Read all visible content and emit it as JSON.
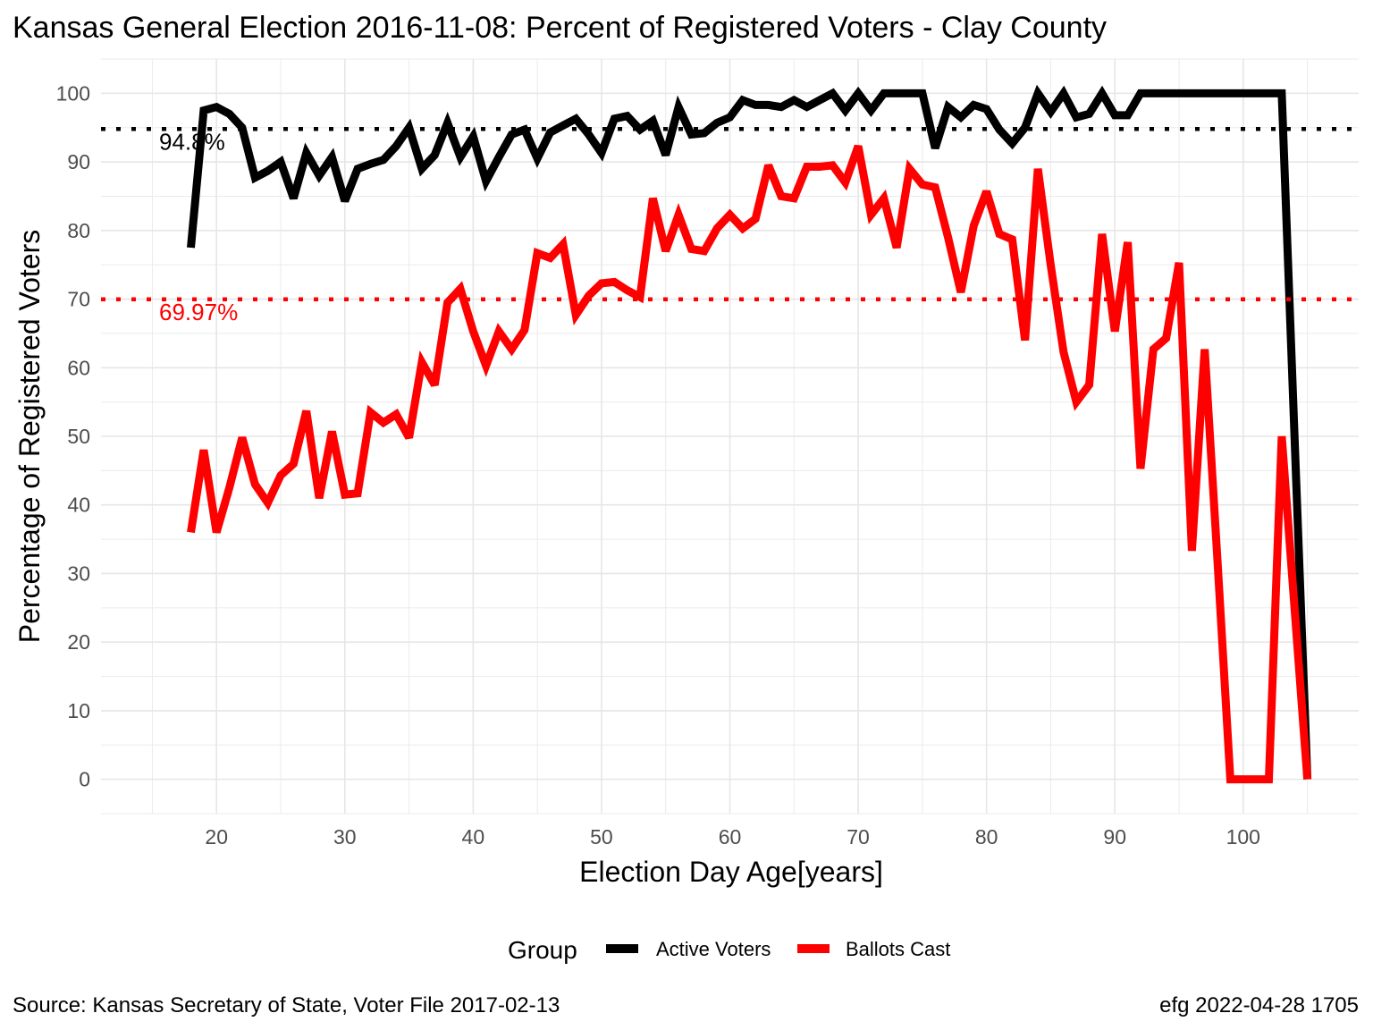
{
  "chart_data": {
    "type": "line",
    "title": "Kansas General Election 2016-11-08:  Percent of Registered Voters - Clay County",
    "xlabel": "Election Day Age[years]",
    "ylabel": "Percentage of Registered Voters",
    "xlim": [
      11,
      109
    ],
    "ylim": [
      -5,
      105
    ],
    "x_ticks": [
      20,
      30,
      40,
      50,
      60,
      70,
      80,
      90,
      100
    ],
    "y_ticks": [
      0,
      10,
      20,
      30,
      40,
      50,
      60,
      70,
      80,
      90,
      100
    ],
    "grid": true,
    "legend": {
      "title": "Group",
      "position": "bottom"
    },
    "reference_lines": [
      {
        "label": "94.8%",
        "value": 94.8,
        "color": "#000000"
      },
      {
        "label": "69.97%",
        "value": 69.97,
        "color": "#ff0000"
      }
    ],
    "series": [
      {
        "name": "Active Voters",
        "color": "#000000",
        "x": [
          18,
          19,
          20,
          21,
          22,
          23,
          24,
          25,
          26,
          27,
          28,
          29,
          30,
          31,
          32,
          33,
          34,
          35,
          36,
          37,
          38,
          39,
          40,
          41,
          42,
          43,
          44,
          45,
          46,
          47,
          48,
          49,
          50,
          51,
          52,
          53,
          54,
          55,
          56,
          57,
          58,
          59,
          60,
          61,
          62,
          63,
          64,
          65,
          66,
          67,
          68,
          69,
          70,
          71,
          72,
          73,
          74,
          75,
          76,
          77,
          78,
          79,
          80,
          81,
          82,
          83,
          84,
          85,
          86,
          87,
          88,
          89,
          90,
          91,
          92,
          93,
          94,
          95,
          96,
          97,
          98,
          99,
          100,
          101,
          102,
          103,
          104,
          105
        ],
        "values": [
          77.5,
          97.5,
          98,
          97,
          95,
          87.7,
          88.7,
          90,
          84.7,
          91.3,
          88,
          90.7,
          84.3,
          89,
          89.7,
          90.3,
          92.3,
          95,
          89,
          91,
          95.7,
          90.7,
          93.7,
          87.2,
          90.7,
          94,
          94.7,
          90.5,
          94.3,
          95.3,
          96.3,
          94,
          91.3,
          96.3,
          96.7,
          94.7,
          96,
          91,
          98,
          94,
          94.2,
          95.7,
          96.5,
          99,
          98.3,
          98.3,
          98,
          99,
          98,
          99,
          100,
          97.5,
          100,
          97.5,
          100,
          100,
          100,
          100,
          92,
          98,
          96.5,
          98.3,
          97.7,
          94.7,
          92.7,
          95,
          100,
          97.3,
          100,
          96.5,
          97,
          100,
          96.8,
          96.8,
          100,
          100,
          100,
          100,
          100,
          100,
          100,
          100,
          100,
          100,
          100,
          100,
          50,
          0
        ]
      },
      {
        "name": "Ballots Cast",
        "color": "#ff0000",
        "x": [
          18,
          19,
          20,
          21,
          22,
          23,
          24,
          25,
          26,
          27,
          28,
          29,
          30,
          31,
          32,
          33,
          34,
          35,
          36,
          37,
          38,
          39,
          40,
          41,
          42,
          43,
          44,
          45,
          46,
          47,
          48,
          49,
          50,
          51,
          52,
          53,
          54,
          55,
          56,
          57,
          58,
          59,
          60,
          61,
          62,
          63,
          64,
          65,
          66,
          67,
          68,
          69,
          70,
          71,
          72,
          73,
          74,
          75,
          76,
          77,
          78,
          79,
          80,
          81,
          82,
          83,
          84,
          85,
          86,
          87,
          88,
          89,
          90,
          91,
          92,
          93,
          94,
          95,
          96,
          97,
          98,
          99,
          100,
          101,
          102,
          103,
          104,
          105
        ],
        "values": [
          36,
          48,
          36,
          42.5,
          49.8,
          43,
          40.3,
          44.3,
          46,
          53.7,
          41,
          50.7,
          41.5,
          41.7,
          53.5,
          52,
          53.2,
          49.8,
          60.8,
          57.5,
          69.5,
          71.5,
          65.3,
          60.3,
          65.3,
          62.7,
          65.5,
          76.7,
          76,
          78,
          67.7,
          70.5,
          72.3,
          72.5,
          71.3,
          70.3,
          84.7,
          77,
          82.3,
          77.3,
          77,
          80.3,
          82.3,
          80.3,
          81.7,
          89.5,
          85,
          84.7,
          89.3,
          89.3,
          89.5,
          87,
          92.3,
          82.3,
          84.7,
          77.5,
          89,
          86.7,
          86.3,
          79,
          71,
          80.7,
          85.7,
          79.5,
          78.7,
          64,
          89,
          75,
          62.3,
          55,
          57.5,
          79.5,
          65.3,
          78.3,
          45.3,
          62.7,
          64.3,
          75.3,
          33.3,
          62.7,
          31.7,
          0,
          0,
          0,
          0,
          50,
          25,
          0
        ]
      }
    ]
  },
  "caption": {
    "source": "Source:  Kansas Secretary of State, Voter File  2017-02-13",
    "credit": "efg 2022-04-28 1705"
  }
}
